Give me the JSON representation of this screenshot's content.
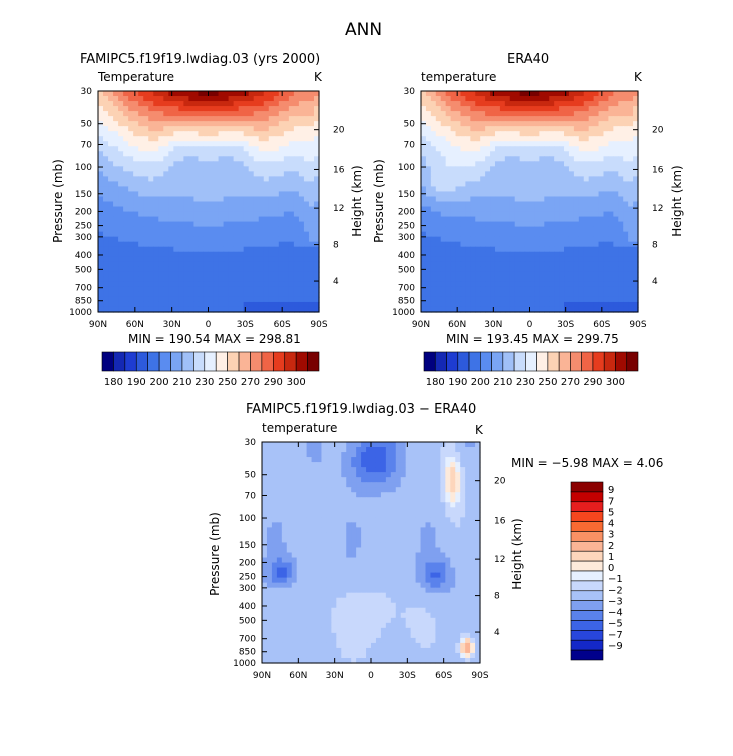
{
  "header": {
    "title": "ANN"
  },
  "chart_data": [
    {
      "type": "heatmap",
      "title": "FAMIPC5.f19f19.lwdiag.03 (yrs 2000)",
      "subtitle_left": "Temperature",
      "subtitle_right": "K",
      "xlabel": "",
      "ylabel": "Pressure (mb)",
      "y2label": "Height (km)",
      "x_ticks": [
        "90N",
        "60N",
        "30N",
        "0",
        "30S",
        "60S",
        "90S"
      ],
      "y_ticks": [
        30,
        50,
        70,
        100,
        150,
        200,
        250,
        300,
        400,
        500,
        700,
        850,
        1000
      ],
      "y2_ticks": [
        20,
        16,
        12,
        8,
        4
      ],
      "stats": "MIN = 190.54   MAX = 298.81",
      "min": 190.54,
      "max": 298.81
    },
    {
      "type": "heatmap",
      "title": "ERA40",
      "subtitle_left": "temperature",
      "subtitle_right": "K",
      "xlabel": "",
      "ylabel": "Pressure (mb)",
      "y2label": "Height (km)",
      "x_ticks": [
        "90N",
        "60N",
        "30N",
        "0",
        "30S",
        "60S",
        "90S"
      ],
      "y_ticks": [
        30,
        50,
        70,
        100,
        150,
        200,
        250,
        300,
        400,
        500,
        700,
        850,
        1000
      ],
      "y2_ticks": [
        20,
        16,
        12,
        8,
        4
      ],
      "stats": "MIN = 193.45   MAX = 299.75",
      "min": 193.45,
      "max": 299.75
    },
    {
      "type": "heatmap",
      "title": "FAMIPC5.f19f19.lwdiag.03 − ERA40",
      "subtitle_left": "temperature",
      "subtitle_right": "K",
      "xlabel": "",
      "ylabel": "Pressure (mb)",
      "y2label": "Height (km)",
      "x_ticks": [
        "90N",
        "60N",
        "30N",
        "0",
        "30S",
        "60S",
        "90S"
      ],
      "y_ticks": [
        30,
        50,
        70,
        100,
        150,
        200,
        250,
        300,
        400,
        500,
        700,
        850,
        1000
      ],
      "y2_ticks": [
        20,
        16,
        12,
        8,
        4
      ],
      "stats": "MIN =   −5.98   MAX =    4.06",
      "min": -5.98,
      "max": 4.06
    }
  ],
  "colorbar_abs": {
    "colors": [
      "#00007f",
      "#1428b4",
      "#1e3cd2",
      "#2d5adc",
      "#3e73e6",
      "#5a8cf0",
      "#7aa5f4",
      "#a0c0f8",
      "#c8dcfc",
      "#e6f0ff",
      "#fff0e6",
      "#fcd2b4",
      "#fab496",
      "#f58c6e",
      "#f06446",
      "#e63c1e",
      "#c8280f",
      "#a00a00",
      "#780000"
    ],
    "labels": [
      "180",
      "190",
      "200",
      "210",
      "230",
      "250",
      "270",
      "290",
      "300"
    ]
  },
  "colorbar_diff": {
    "colors": [
      "#8b0000",
      "#c40000",
      "#e61e1e",
      "#f5461e",
      "#f86a32",
      "#f99164",
      "#fbb596",
      "#fdd6bc",
      "#fdeadb",
      "#e6f0ff",
      "#c8d8fc",
      "#a8c2f8",
      "#7fa0f0",
      "#5a82ec",
      "#3c64e6",
      "#2846dc",
      "#1428c8",
      "#00008c"
    ],
    "labels": [
      "9",
      "7",
      "5",
      "4",
      "3",
      "2",
      "1",
      "0",
      "−1",
      "−2",
      "−3",
      "−4",
      "−5",
      "−7",
      "−9"
    ]
  }
}
